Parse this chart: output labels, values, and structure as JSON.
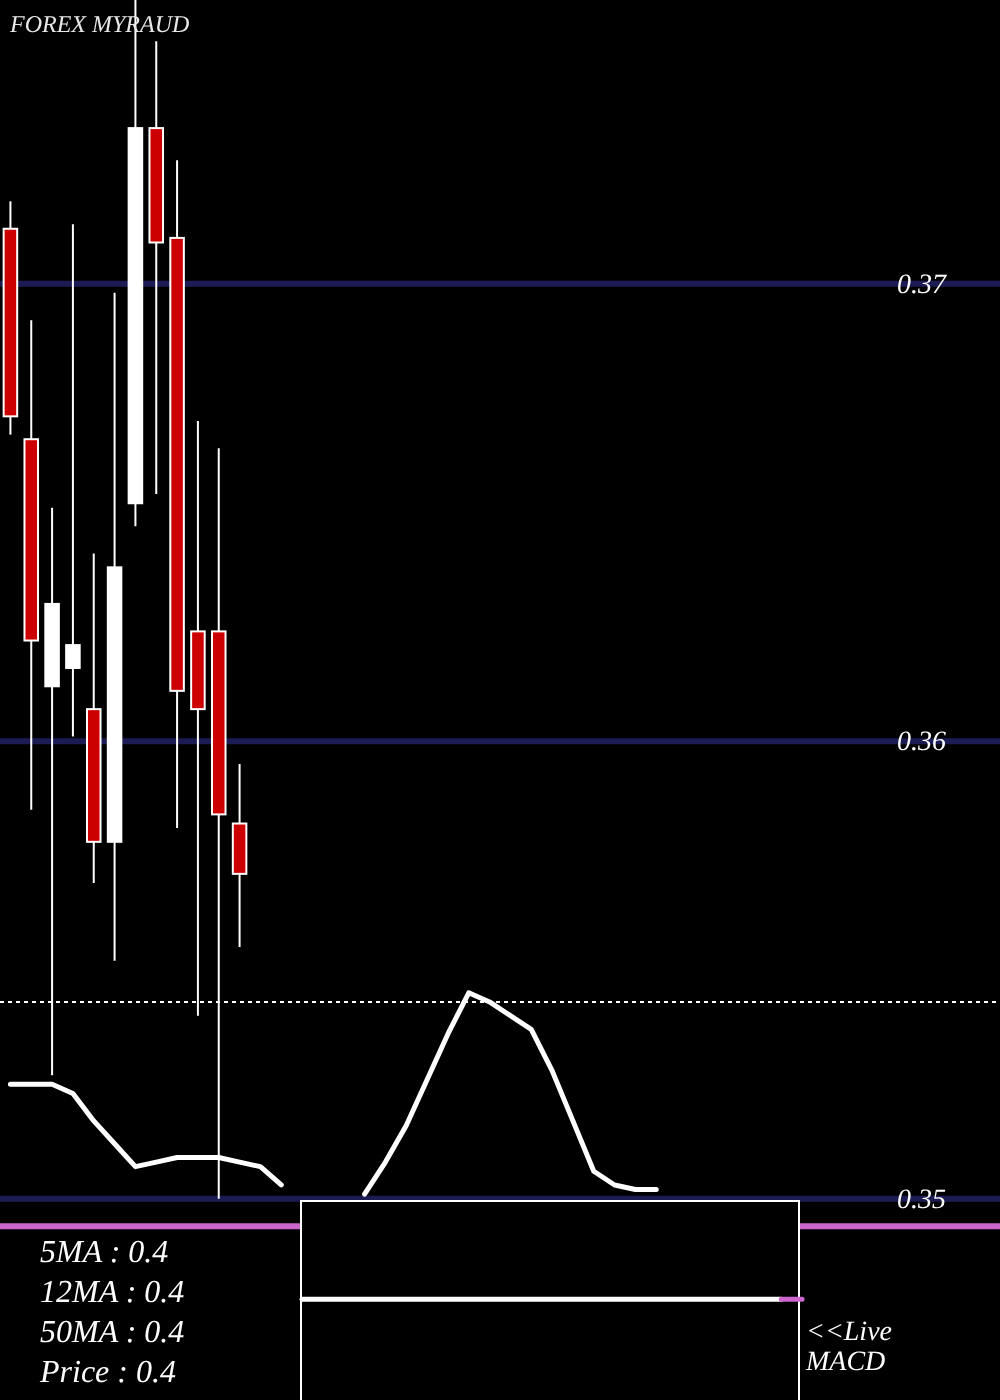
{
  "chart_data": {
    "type": "candlestick",
    "title": "FOREX MYRAUD",
    "categories": [
      null,
      null,
      null,
      null,
      null,
      null,
      null,
      null,
      null,
      null,
      null,
      null,
      null,
      null,
      null,
      null,
      null,
      null,
      null,
      null,
      null,
      null,
      null,
      null,
      null,
      null,
      null,
      null,
      null,
      null,
      null,
      null,
      null,
      null,
      null,
      null,
      null,
      null,
      null,
      null,
      null,
      null,
      null,
      null,
      null,
      null,
      null,
      null
    ],
    "ohlc": [
      [
        0.3712,
        0.3718,
        0.3667,
        0.3671
      ],
      [
        0.3666,
        0.3692,
        0.3585,
        0.3622
      ],
      [
        0.3612,
        0.3651,
        0.3527,
        0.363
      ],
      [
        0.3616,
        0.3713,
        0.3601,
        0.3621
      ],
      [
        0.3607,
        0.3641,
        0.3569,
        0.3578
      ],
      [
        0.3578,
        0.3698,
        0.3552,
        0.3638
      ],
      [
        0.3652,
        0.3762,
        0.3647,
        0.3734
      ],
      [
        0.3734,
        0.3753,
        0.3654,
        0.3709
      ],
      [
        0.371,
        0.3727,
        0.3581,
        0.3611
      ],
      [
        0.3624,
        0.367,
        0.354,
        0.3607
      ],
      [
        0.3624,
        0.3664,
        0.35,
        0.3584
      ],
      [
        0.3582,
        0.3595,
        0.3555,
        0.3571
      ],
      null,
      null,
      null,
      null,
      null,
      null,
      null,
      null,
      null,
      null,
      null,
      null,
      null,
      null,
      null,
      null,
      null,
      null,
      null,
      null,
      null,
      null,
      null,
      null,
      null,
      null,
      null,
      null,
      null,
      null,
      null,
      null,
      null,
      null,
      null,
      null
    ],
    "colors": [
      "#cc0000",
      "#cc0000",
      "#ffffff",
      "#ffffff",
      "#cc0000",
      "#ffffff",
      "#ffffff",
      "#cc0000",
      "#cc0000",
      "#cc0000",
      "#cc0000",
      "#cc0000",
      null,
      null,
      null,
      null,
      null,
      null,
      null,
      null,
      null,
      null,
      null,
      null,
      null,
      null,
      null,
      null,
      null,
      null,
      null,
      null,
      null,
      null,
      null,
      null,
      null,
      null,
      null,
      null,
      null,
      null,
      null,
      null,
      null,
      null,
      null,
      null
    ],
    "series": [
      {
        "type": "line",
        "color": "#ffffff",
        "values": [
          0.3525,
          0.3525,
          0.3525,
          0.3523,
          0.3517,
          0.3512,
          0.3507,
          0.3508,
          0.3509,
          0.3509,
          0.3509,
          0.3508,
          0.3507,
          0.3503,
          null,
          null,
          null,
          0.3501,
          0.3508,
          0.3516,
          0.3526,
          0.3536,
          0.3545,
          0.3543,
          0.354,
          0.3537,
          0.3528,
          0.3517,
          0.3506,
          0.3503,
          0.3502,
          0.3502,
          null,
          null,
          null,
          null,
          null,
          null,
          null,
          null,
          null,
          null,
          null,
          null,
          null,
          null,
          null,
          null
        ]
      },
      {
        "type": "line",
        "color": "#ffffff",
        "values": [
          null,
          null,
          null,
          null,
          null,
          null,
          null,
          null,
          null,
          null,
          null,
          null,
          null,
          null,
          0.3478,
          0.3478,
          0.3478,
          0.3478,
          0.3478,
          0.3478,
          0.3478,
          0.3478,
          0.3478,
          0.3478,
          0.3478,
          0.3478,
          0.3478,
          0.3478,
          0.3478,
          0.3478,
          0.3478,
          0.3478,
          0.3478,
          0.3478,
          0.3478,
          0.3478,
          0.3478,
          0.3478,
          null,
          null,
          null,
          null,
          null,
          null,
          null,
          null,
          null,
          null
        ]
      },
      {
        "type": "line",
        "color": "#cc66cc",
        "values": [
          null,
          null,
          null,
          null,
          null,
          null,
          null,
          null,
          null,
          null,
          null,
          null,
          null,
          null,
          null,
          null,
          null,
          null,
          null,
          null,
          null,
          null,
          null,
          null,
          null,
          null,
          null,
          null,
          null,
          null,
          null,
          null,
          null,
          null,
          null,
          null,
          null,
          0.3478,
          0.3478,
          null,
          null,
          null,
          null,
          null,
          null,
          null,
          null,
          null
        ]
      }
    ],
    "ylim": [
      0.3456,
      0.3762
    ],
    "yticks": [
      0.35,
      0.36,
      0.37
    ],
    "grid": "y",
    "tick_labels": "y",
    "ref_lines": [
      {
        "axis": "y",
        "value": 0.3543,
        "color": "#ffffff",
        "line_style": "dotted"
      },
      {
        "axis": "y",
        "value": 0.3494,
        "color": "#cc66cc",
        "line_style": "solid"
      }
    ],
    "annotations": [
      "5MA : 0.4",
      "12MA : 0.4",
      "50MA : 0.4",
      "Price : 0.4",
      "<<Live MACD"
    ]
  }
}
